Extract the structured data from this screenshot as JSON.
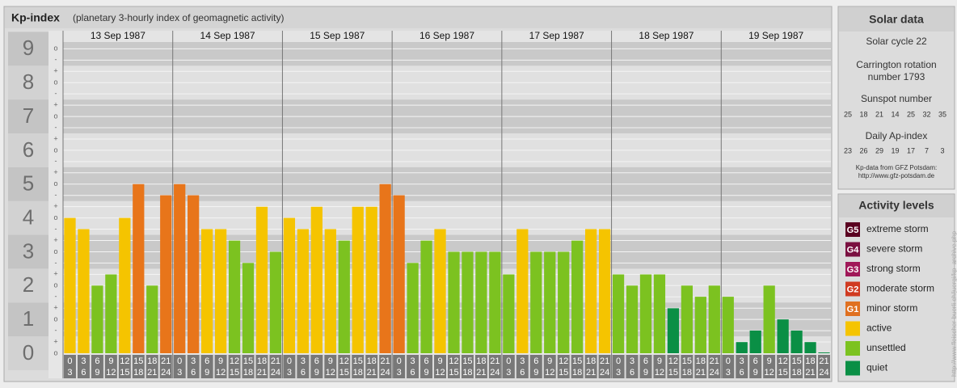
{
  "chart_data": {
    "type": "bar",
    "title": "Kp-index",
    "subtitle": "(planetary 3-hourly index of geomagnetic activity)",
    "days": [
      "13 Sep 1987",
      "14 Sep 1987",
      "15 Sep 1987",
      "16 Sep 1987",
      "17 Sep 1987",
      "18 Sep 1987",
      "19 Sep 1987"
    ],
    "slots": [
      [
        "0",
        "3"
      ],
      [
        "3",
        "6"
      ],
      [
        "6",
        "9"
      ],
      [
        "9",
        "12"
      ],
      [
        "12",
        "15"
      ],
      [
        "15",
        "18"
      ],
      [
        "18",
        "21"
      ],
      [
        "21",
        "24"
      ]
    ],
    "values": [
      4,
      3.67,
      2,
      2.33,
      4,
      5,
      2,
      4.67,
      5,
      4.67,
      3.67,
      3.67,
      3.33,
      2.67,
      4.33,
      3,
      4,
      3.67,
      4.33,
      3.67,
      3.33,
      4.33,
      4.33,
      5,
      4.67,
      2.67,
      3.33,
      3.67,
      3,
      3,
      3,
      3,
      2.33,
      3.67,
      3,
      3,
      3,
      3.33,
      3.67,
      3.67,
      2.33,
      2,
      2.33,
      2.33,
      1.33,
      2,
      1.67,
      2,
      1.67,
      0.33,
      0.67,
      2,
      1,
      0.67,
      0.33,
      0
    ],
    "colors": [
      "#f5c400",
      "#f5c400",
      "#7cc220",
      "#7cc220",
      "#f5c400",
      "#e8751a",
      "#7cc220",
      "#e8751a",
      "#e8751a",
      "#e8751a",
      "#f5c400",
      "#f5c400",
      "#7cc220",
      "#7cc220",
      "#f5c400",
      "#7cc220",
      "#f5c400",
      "#f5c400",
      "#f5c400",
      "#f5c400",
      "#7cc220",
      "#f5c400",
      "#f5c400",
      "#e8751a",
      "#e8751a",
      "#7cc220",
      "#7cc220",
      "#f5c400",
      "#7cc220",
      "#7cc220",
      "#7cc220",
      "#7cc220",
      "#7cc220",
      "#f5c400",
      "#7cc220",
      "#7cc220",
      "#7cc220",
      "#7cc220",
      "#f5c400",
      "#f5c400",
      "#7cc220",
      "#7cc220",
      "#7cc220",
      "#7cc220",
      "#0a8f45",
      "#7cc220",
      "#7cc220",
      "#7cc220",
      "#7cc220",
      "#0a8f45",
      "#0a8f45",
      "#7cc220",
      "#0a8f45",
      "#0a8f45",
      "#0a8f45",
      "#0a8f45"
    ],
    "ylim": [
      0,
      9.2
    ],
    "yticks": [
      0,
      1,
      2,
      3,
      4,
      5,
      6,
      7,
      8,
      9
    ],
    "subticks": [
      "-",
      "o",
      "+"
    ]
  },
  "solar": {
    "title": "Solar data",
    "cycle": "Solar cycle 22",
    "carrington": [
      "Carrington rotation",
      "number 1793"
    ],
    "sunspot_title": "Sunspot number",
    "sunspot": [
      25,
      18,
      21,
      14,
      25,
      32,
      35
    ],
    "ap_title": "Daily Ap-index",
    "ap": [
      23,
      26,
      29,
      19,
      17,
      7,
      3
    ],
    "source": [
      "Kp-data from GFZ Potsdam:",
      "http://www.gfz-potsdam.de"
    ]
  },
  "levels": {
    "title": "Activity levels",
    "items": [
      {
        "badge": "G5",
        "label": "extreme storm",
        "color": "#5a0020"
      },
      {
        "badge": "G4",
        "label": "severe storm",
        "color": "#7a1040"
      },
      {
        "badge": "G3",
        "label": "strong storm",
        "color": "#a01858"
      },
      {
        "badge": "G2",
        "label": "moderate storm",
        "color": "#d03a20"
      },
      {
        "badge": "G1",
        "label": "minor storm",
        "color": "#e07020"
      },
      {
        "badge": "",
        "label": "active",
        "color": "#f5c400"
      },
      {
        "badge": "",
        "label": "unsettled",
        "color": "#7cc220"
      },
      {
        "badge": "",
        "label": "quiet",
        "color": "#0a8f45"
      }
    ]
  },
  "credit": "http://www.fleischer-buerli.ch/juergi/kp_archive.php"
}
